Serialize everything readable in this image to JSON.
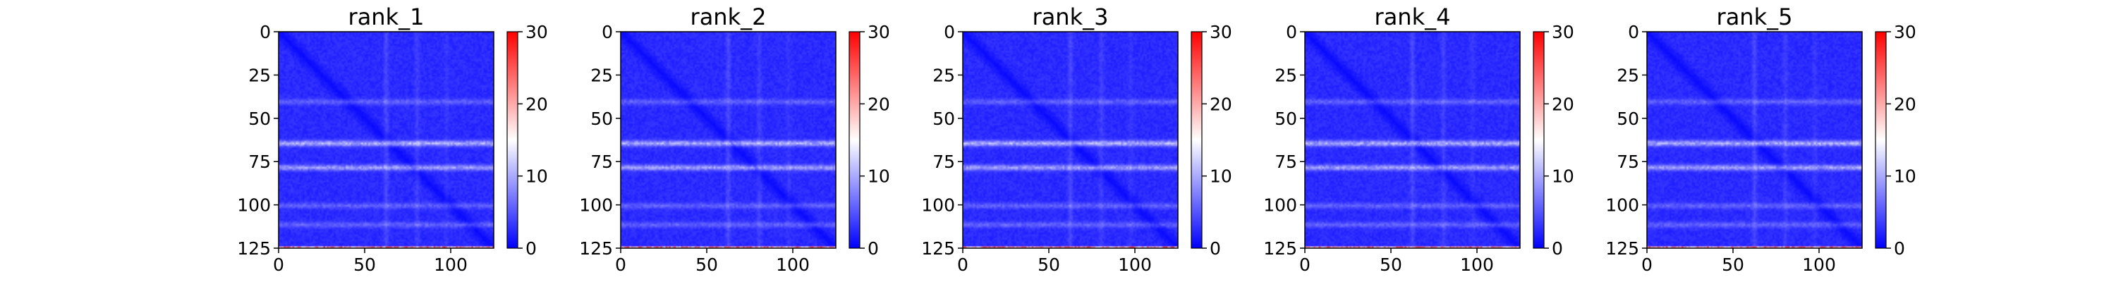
{
  "chart_data": {
    "type": "heatmap",
    "shared": {
      "colormap": [
        "#0000ff",
        "#ffffff",
        "#ff0000"
      ],
      "vmin": 0,
      "vmax": 30,
      "colorbar_ticks": [
        "0",
        "10",
        "20",
        "30"
      ],
      "x_ticks": [
        "0",
        "50",
        "100"
      ],
      "y_ticks": [
        "0",
        "25",
        "50",
        "75",
        "100",
        "125"
      ],
      "matrix_size": 125,
      "xlim": [
        0,
        125
      ],
      "ylim": [
        125,
        0
      ],
      "structure": {
        "diagonal": 0,
        "background": 2.5,
        "bright_rows": [
          {
            "at": 40,
            "value": 6
          },
          {
            "at": 64,
            "value": 11
          },
          {
            "at": 78,
            "value": 10
          },
          {
            "at": 100,
            "value": 6
          },
          {
            "at": 111,
            "value": 6
          }
        ],
        "bright_columns": [
          {
            "at": 62,
            "value": 6
          },
          {
            "at": 80,
            "value": 5
          },
          {
            "at": 97,
            "value": 4
          }
        ],
        "last_row_value": 22
      }
    },
    "panels": [
      {
        "title": "rank_1"
      },
      {
        "title": "rank_2"
      },
      {
        "title": "rank_3"
      },
      {
        "title": "rank_4"
      },
      {
        "title": "rank_5"
      }
    ]
  }
}
